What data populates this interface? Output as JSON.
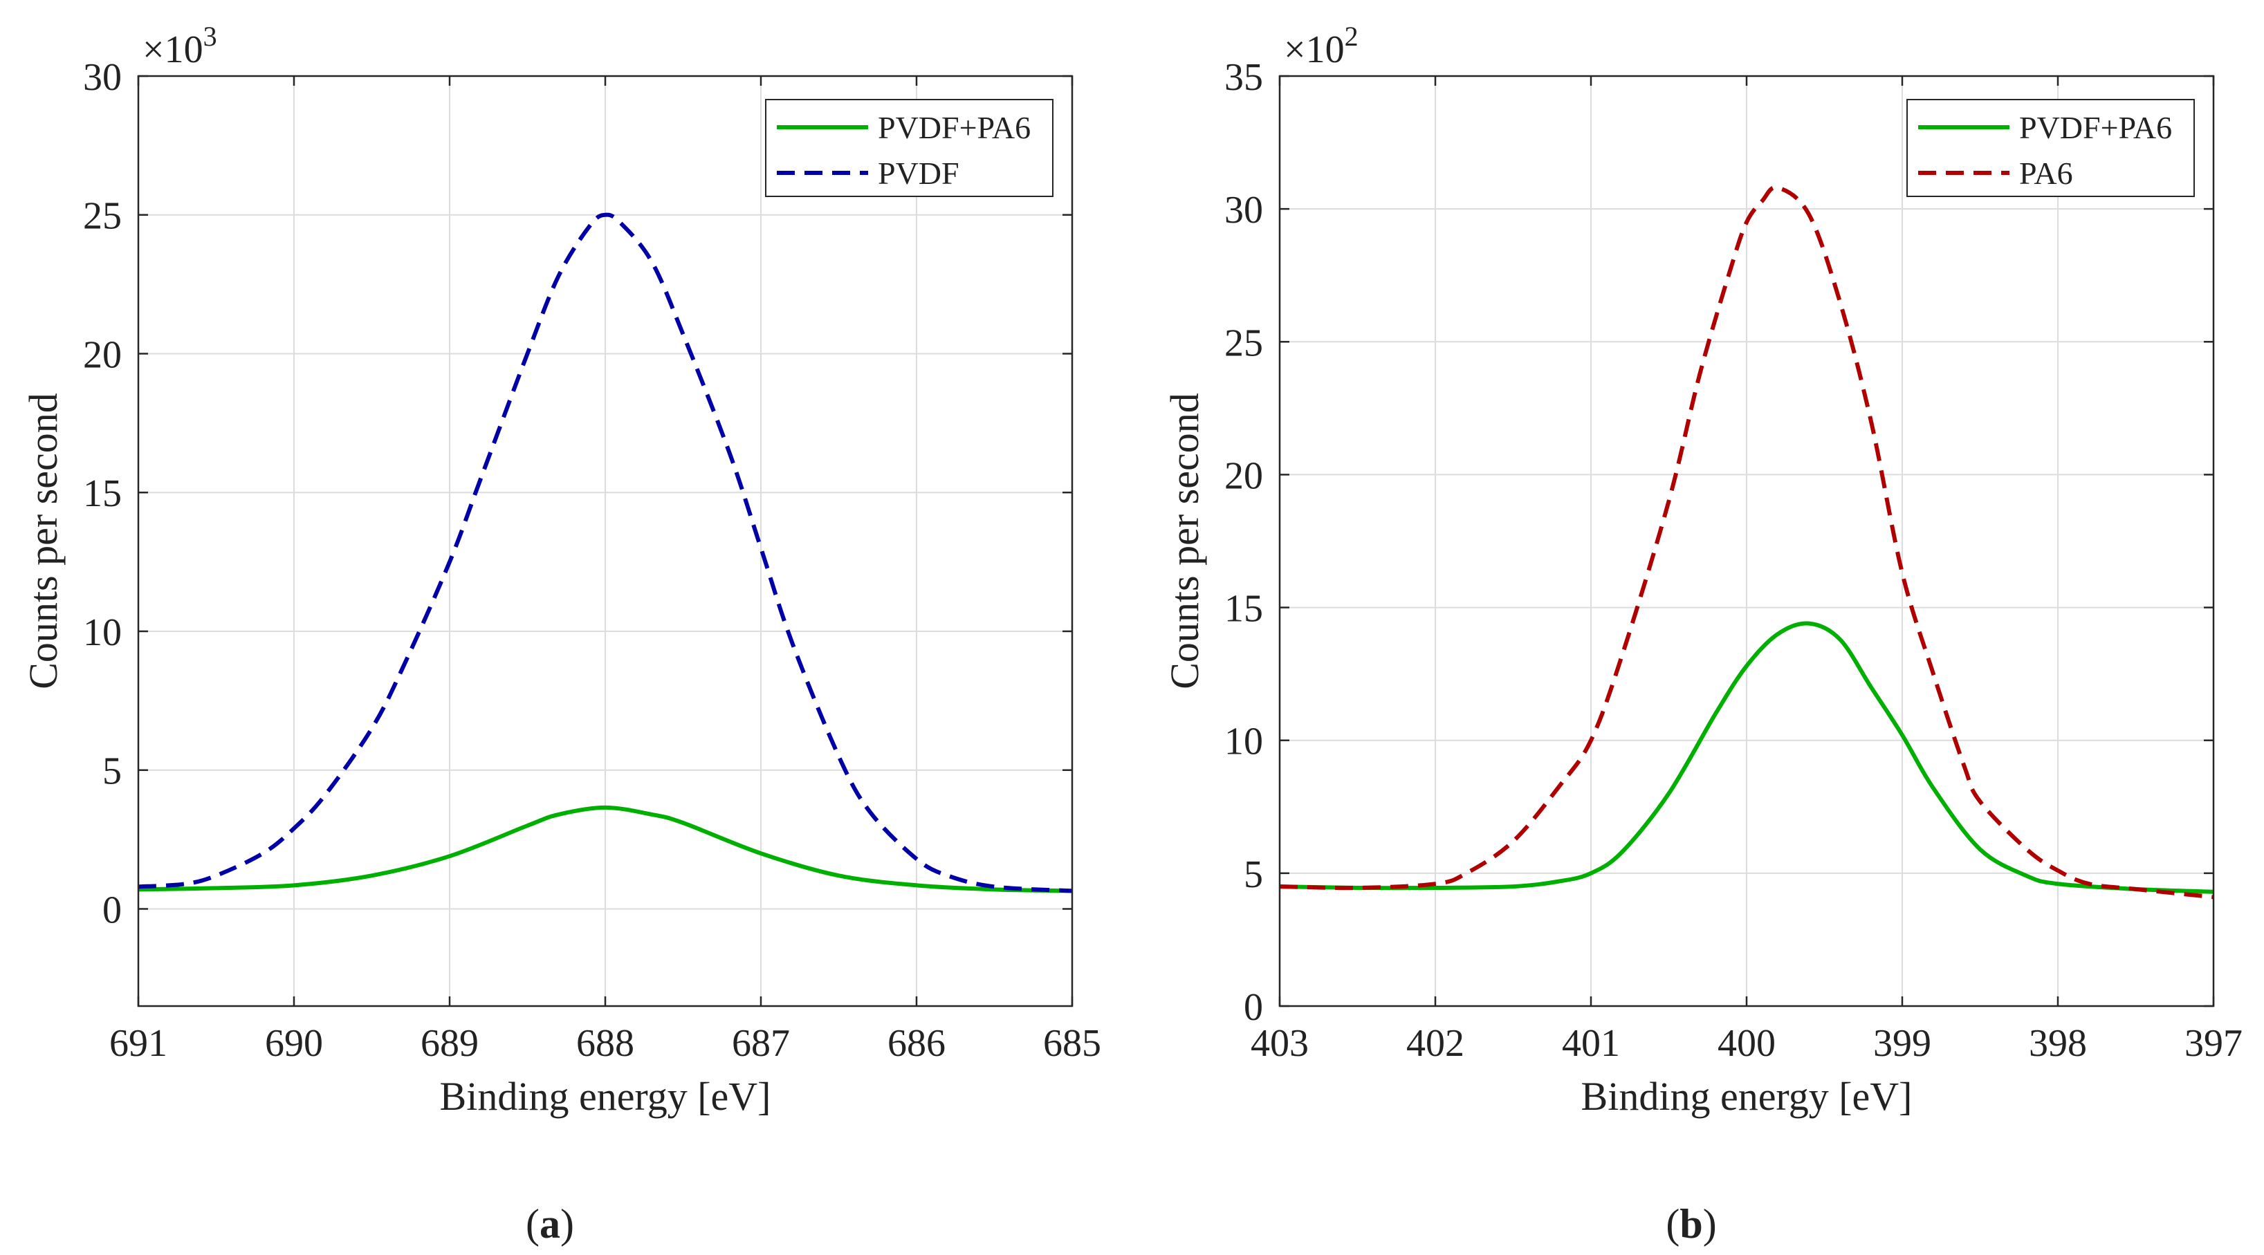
{
  "chart_data": [
    {
      "type": "line",
      "panel_label": "(a)",
      "xlabel": "Binding energy [eV]",
      "ylabel": "Counts per second",
      "exponent_label": "×10",
      "exponent_power": "3",
      "xlim": [
        691,
        685
      ],
      "x_reversed": true,
      "ylim": [
        -3.5,
        30
      ],
      "xticks": [
        691,
        690,
        689,
        688,
        687,
        686,
        685
      ],
      "yticks": [
        0,
        5,
        10,
        15,
        20,
        25,
        30
      ],
      "grid": true,
      "legend_position": "top-right",
      "series": [
        {
          "name": "PVDF+PA6",
          "color": "#00b000",
          "dash": "solid",
          "x": [
            691,
            690.5,
            690,
            689.5,
            689,
            688.5,
            688.3,
            688,
            687.7,
            687.5,
            687,
            686.5,
            686,
            685.5,
            685
          ],
          "y": [
            0.7,
            0.75,
            0.85,
            1.2,
            1.9,
            3.0,
            3.4,
            3.65,
            3.4,
            3.1,
            2.0,
            1.2,
            0.85,
            0.7,
            0.65
          ]
        },
        {
          "name": "PVDF",
          "color": "#0000a8",
          "dash": "dashed",
          "x": [
            691,
            690.7,
            690.5,
            690.2,
            690,
            689.8,
            689.5,
            689.3,
            689,
            688.8,
            688.5,
            688.3,
            688.1,
            688,
            687.9,
            687.7,
            687.5,
            687.2,
            687,
            686.8,
            686.5,
            686.3,
            686,
            685.8,
            685.5,
            685
          ],
          "y": [
            0.8,
            0.9,
            1.2,
            2.0,
            2.9,
            4.1,
            6.5,
            8.7,
            12.5,
            15.5,
            20.0,
            22.8,
            24.6,
            25.0,
            24.7,
            23.3,
            20.7,
            16.4,
            13.0,
            9.6,
            5.5,
            3.5,
            1.8,
            1.2,
            0.8,
            0.65
          ]
        }
      ]
    },
    {
      "type": "line",
      "panel_label": "(b)",
      "xlabel": "Binding energy [eV]",
      "ylabel": "Counts per second",
      "exponent_label": "×10",
      "exponent_power": "2",
      "xlim": [
        403,
        397
      ],
      "x_reversed": true,
      "ylim": [
        0,
        35
      ],
      "xticks": [
        403,
        402,
        401,
        400,
        399,
        398,
        397
      ],
      "yticks": [
        0,
        5,
        10,
        15,
        20,
        25,
        30,
        35
      ],
      "grid": true,
      "legend_position": "top-right",
      "series": [
        {
          "name": "PVDF+PA6",
          "color": "#00b000",
          "dash": "solid",
          "x": [
            403,
            402.5,
            402,
            401.5,
            401.2,
            401,
            400.8,
            400.5,
            400.2,
            400,
            399.8,
            399.6,
            399.4,
            399.2,
            399,
            398.8,
            398.5,
            398.2,
            398,
            397.5,
            397
          ],
          "y": [
            4.5,
            4.45,
            4.45,
            4.5,
            4.7,
            5.0,
            5.8,
            8.0,
            11.0,
            12.8,
            14.0,
            14.4,
            13.8,
            12.0,
            10.2,
            8.2,
            5.9,
            4.9,
            4.6,
            4.4,
            4.3
          ]
        },
        {
          "name": "PA6",
          "color": "#b00000",
          "dash": "dashed",
          "x": [
            403,
            402.5,
            402,
            401.8,
            401.5,
            401.2,
            401,
            400.8,
            400.5,
            400.3,
            400.1,
            400,
            399.9,
            399.8,
            399.6,
            399.4,
            399.2,
            399,
            398.8,
            398.6,
            398.5,
            398.2,
            398,
            397.8,
            397.5,
            397
          ],
          "y": [
            4.5,
            4.45,
            4.6,
            5.0,
            6.2,
            8.3,
            10.0,
            13.2,
            19.0,
            23.8,
            27.8,
            29.5,
            30.3,
            30.8,
            29.8,
            26.5,
            22.0,
            16.3,
            12.5,
            9.0,
            7.7,
            5.9,
            5.1,
            4.6,
            4.4,
            4.1
          ]
        }
      ]
    }
  ]
}
